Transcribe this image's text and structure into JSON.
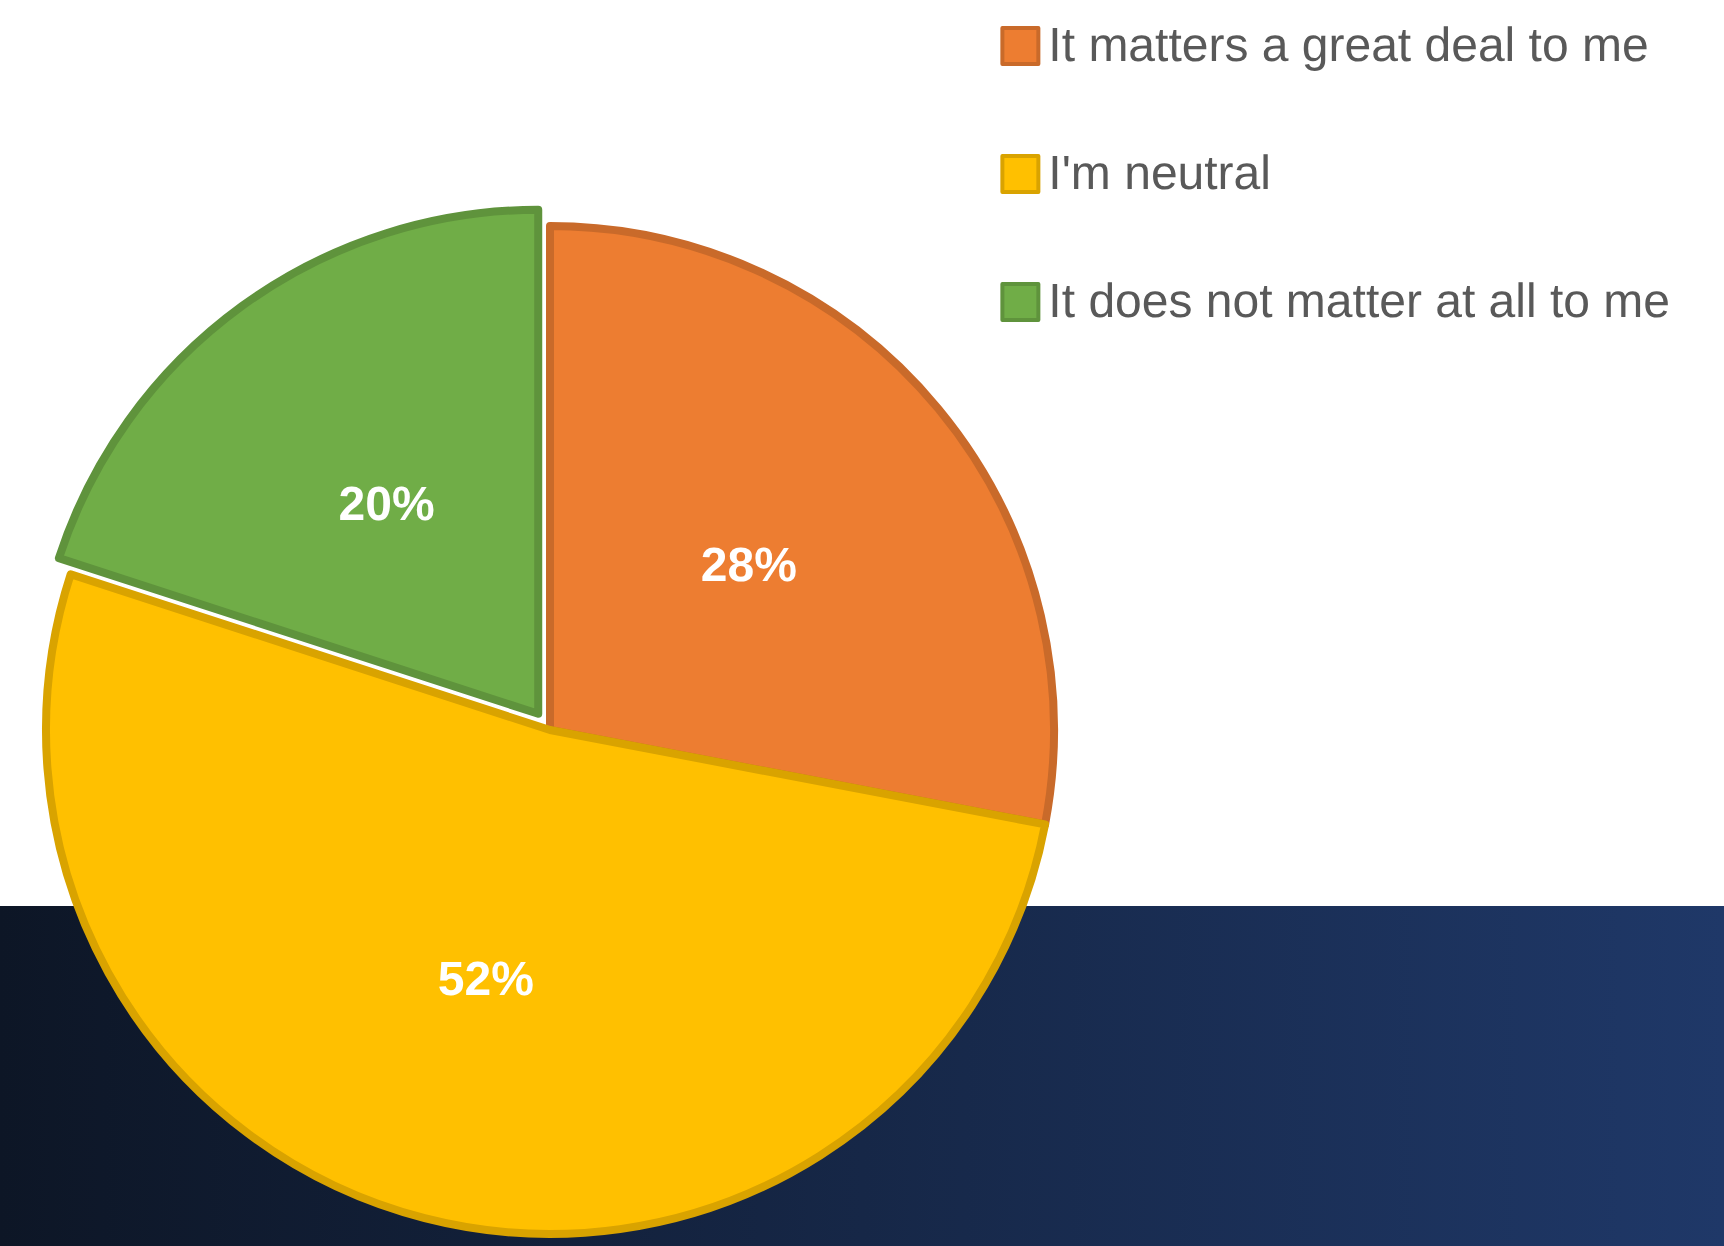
{
  "chart_data": {
    "type": "pie",
    "categories": [
      "It matters a great deal to me",
      "I'm neutral",
      "It does not matter at all to me"
    ],
    "values": [
      28,
      52,
      20
    ],
    "colors": [
      "#ed7d31",
      "#ffc000",
      "#70ad47"
    ],
    "value_labels": [
      "28%",
      "52%",
      "20%"
    ],
    "legend": "top right"
  }
}
